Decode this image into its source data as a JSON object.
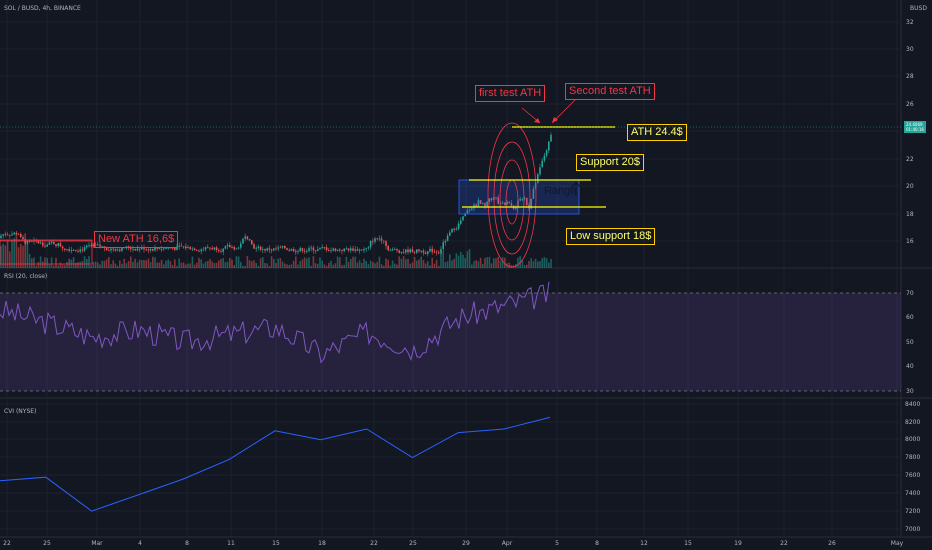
{
  "header": {
    "symbol": "SOL / BUSD, 4h, BINANCE",
    "currency": "BUSD"
  },
  "price_tag": {
    "line1": "24.4069",
    "line2": "01:40:16"
  },
  "rsi_pane": {
    "title": "RSI (20, close)",
    "ticks": [
      "70",
      "60",
      "50",
      "40",
      "30"
    ]
  },
  "cvi_pane": {
    "title": "CVI (NYSE)",
    "ticks": [
      "8400",
      "8200",
      "8000",
      "7800",
      "7600",
      "7400",
      "7200",
      "7000"
    ]
  },
  "price_axis": {
    "ticks": [
      "32",
      "30",
      "28",
      "26",
      "24",
      "22",
      "20",
      "18",
      "16"
    ]
  },
  "time_axis": {
    "ticks": [
      "22",
      "25",
      "Mar",
      "4",
      "8",
      "11",
      "15",
      "18",
      "22",
      "25",
      "29",
      "Apr",
      "5",
      "8",
      "12",
      "15",
      "19",
      "22",
      "26",
      "May"
    ]
  },
  "annotations": {
    "new_ath": "New ATH 16,6$",
    "first_test": "first test ATH",
    "second_test": "Second test ATH",
    "ath": "ATH 24.4$",
    "support20": "Support 20$",
    "low_support": "Low support 18$",
    "range": "Range"
  },
  "colors": {
    "background": "#131722",
    "up": "#26a69a",
    "down": "#ef5350",
    "rsi_band": "#7e57c2",
    "cvi_line": "#2962ff",
    "annotation_red": "#f23645",
    "annotation_yellow": "#ffff00"
  },
  "chart_data": [
    {
      "type": "line",
      "title": "RSI (20, close)",
      "x": [
        "22",
        "25",
        "Mar",
        "4",
        "8",
        "11",
        "15",
        "18",
        "22",
        "25",
        "29",
        "Apr",
        "5"
      ],
      "series": [
        {
          "values": [
            63,
            58,
            52,
            55,
            50,
            53,
            56,
            45,
            54,
            47,
            60,
            65,
            70
          ]
        }
      ],
      "ylim": [
        30,
        75
      ]
    },
    {
      "type": "line",
      "title": "CVI (NYSE)",
      "x": [
        "22",
        "25",
        "Mar",
        "4",
        "8",
        "11",
        "15",
        "18",
        "22",
        "25",
        "29",
        "Apr",
        "5"
      ],
      "series": [
        {
          "values": [
            7540,
            7580,
            7200,
            7380,
            7560,
            7780,
            8100,
            8000,
            8120,
            7800,
            8080,
            8120,
            8250
          ]
        }
      ],
      "ylim": [
        6900,
        8400
      ]
    }
  ]
}
